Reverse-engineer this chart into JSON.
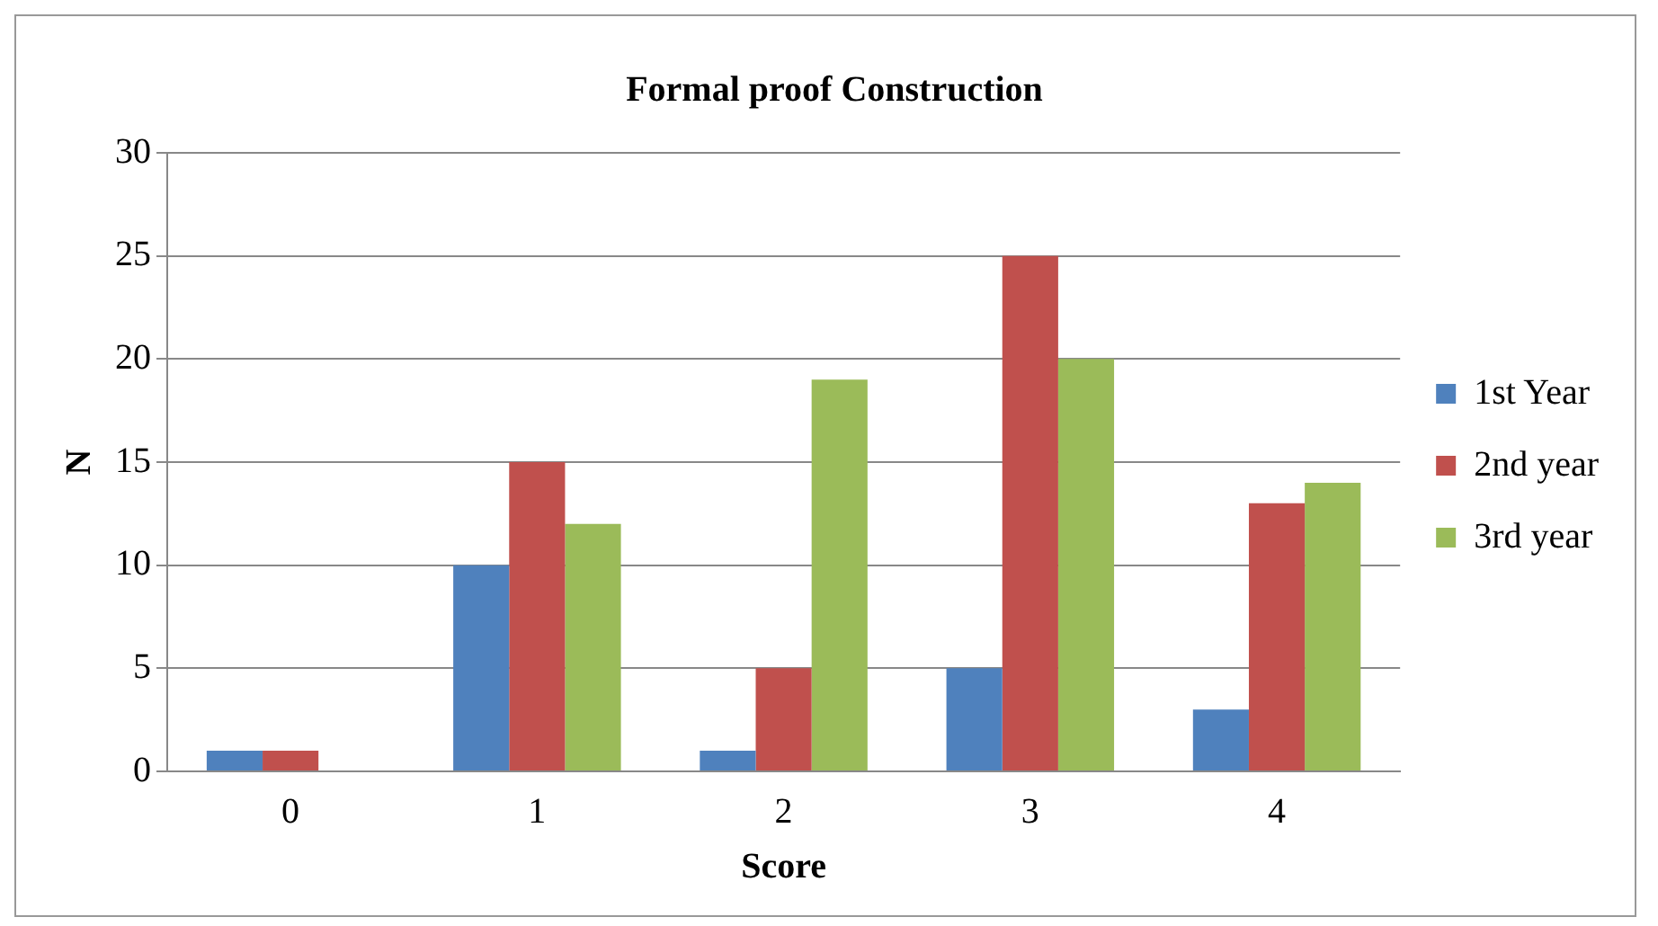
{
  "chart_data": {
    "type": "bar",
    "title": "Formal proof Construction",
    "xlabel": "Score",
    "ylabel": "N",
    "categories": [
      "0",
      "1",
      "2",
      "3",
      "4"
    ],
    "series": [
      {
        "name": "1st Year",
        "color": "#4f81bd",
        "values": [
          1,
          10,
          1,
          5,
          3
        ]
      },
      {
        "name": "2nd year",
        "color": "#c0504d",
        "values": [
          1,
          15,
          5,
          25,
          13
        ]
      },
      {
        "name": "3rd year",
        "color": "#9bbb59",
        "values": [
          0,
          12,
          19,
          20,
          14
        ]
      }
    ],
    "ylim": [
      0,
      30
    ],
    "yticks": [
      0,
      5,
      10,
      15,
      20,
      25,
      30
    ],
    "grid": "y",
    "legend": "right"
  }
}
